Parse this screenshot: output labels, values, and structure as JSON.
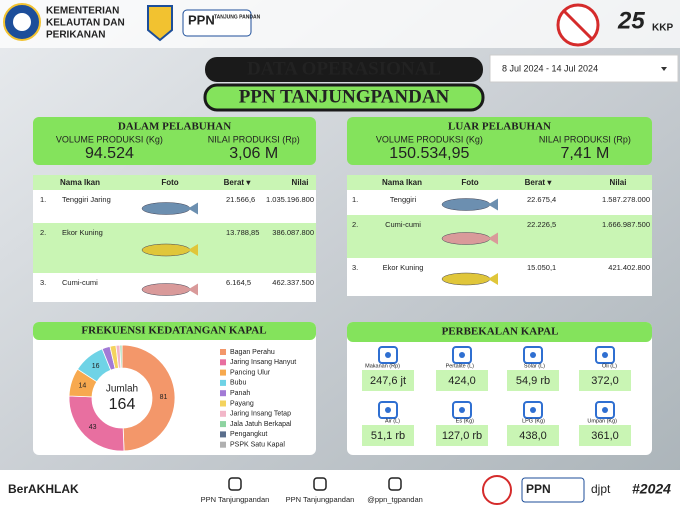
{
  "header": {
    "ministry": [
      "KEMENTERIAN",
      "KELAUTAN DAN",
      "PERIKANAN"
    ],
    "logo_text": [
      "PPN",
      "TANJUNG PANDAN"
    ],
    "anniversary": [
      "25",
      "KKP"
    ]
  },
  "title": "DATA OPERASIONAL",
  "subtitle": "PPN TANJUNGPANDAN",
  "date_range": "8 Jul 2024 - 14 Jul 2024",
  "inside": {
    "title": "DALAM PELABUHAN",
    "volume_label": "VOLUME PRODUKSI (Kg)",
    "volume": "94.524",
    "value_label": "NILAI PRODUKSI (Rp)",
    "value": "3,06 M"
  },
  "outside": {
    "title": "LUAR PELABUHAN",
    "volume_label": "VOLUME PRODUKSI (Kg)",
    "volume": "150.534,95",
    "value_label": "NILAI PRODUKSI (Rp)",
    "value": "7,41 M"
  },
  "table_headers": [
    "Nama Ikan",
    "Foto",
    "Berat ▾",
    "Nilai"
  ],
  "inside_table": {
    "rows": [
      [
        "1.",
        "Tenggiri Jaring",
        "21.566,6",
        "1.035.196.800"
      ],
      [
        "2.",
        "Ekor Kuning",
        "13.788,85",
        "386.087.800"
      ],
      [
        "3.",
        "Cumi-cumi",
        "6.164,5",
        "462.337.500"
      ]
    ]
  },
  "outside_table": {
    "rows": [
      [
        "1.",
        "Tenggiri",
        "22.675,4",
        "1.587.278.000"
      ],
      [
        "2.",
        "Cumi-cumi",
        "22.226,5",
        "1.666.987.500"
      ],
      [
        "3.",
        "Ekor Kuning",
        "15.050,1",
        "421.402.800"
      ]
    ]
  },
  "chart_data": {
    "type": "donut",
    "title": "FREKUENSI KEDATANGAN KAPAL",
    "categories": [
      "Bagan Perahu",
      "Jaring Insang Hanyut",
      "Pancing Ulur",
      "Bubu",
      "Panah",
      "Payang",
      "Jaring Insang Tetap",
      "Jala Jatuh Berkapal",
      "Pengangkut",
      "PSPK Satu Kapal"
    ],
    "values": [
      81,
      43,
      14,
      16,
      4,
      3,
      2,
      1,
      0,
      0
    ],
    "colors": [
      "#f3976a",
      "#e86fa0",
      "#f7a94f",
      "#6fd3e6",
      "#a27ad6",
      "#f4d35e",
      "#f2b6c8",
      "#8dd3a0",
      "#5a6e8c",
      "#b0b0b0"
    ],
    "center_label": "Jumlah",
    "center_value": "164"
  },
  "supplies": {
    "title": "PERBEKALAN KAPAL",
    "items": [
      {
        "label": "Makanan (Rp)",
        "value": "247,6 jt"
      },
      {
        "label": "Pertalite (L)",
        "value": "424,0"
      },
      {
        "label": "Solar (L)",
        "value": "54,9 rb"
      },
      {
        "label": "Oli (L)",
        "value": "372,0"
      },
      {
        "label": "Air (L)",
        "value": "51,1 rb"
      },
      {
        "label": "Es (Kg)",
        "value": "127,0 rb"
      },
      {
        "label": "LPG (Kg)",
        "value": "438,0"
      },
      {
        "label": "Umpan (Kg)",
        "value": "361,0"
      }
    ]
  },
  "footer": {
    "brand": "BerAKHLAK",
    "instagram": "PPN Tanjungpandan",
    "facebook": "PPN Tanjungpandan",
    "twitter": "@ppn_tgpandan",
    "djpt": "djpt",
    "hashtag": "#2024"
  }
}
